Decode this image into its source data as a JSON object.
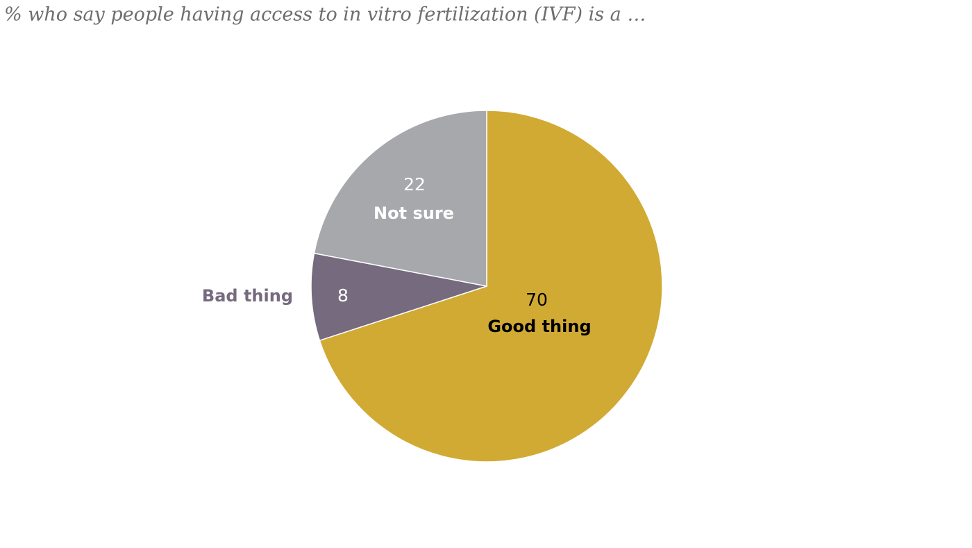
{
  "chart_data": {
    "type": "pie",
    "subtitle": "% who say people having access to in vitro fertilization (IVF) is a …",
    "categories": [
      "Good thing",
      "Bad thing",
      "Not sure"
    ],
    "values": [
      70,
      8,
      22
    ],
    "colors": [
      "#d1aa34",
      "#756a7e",
      "#a7a8ab"
    ]
  }
}
